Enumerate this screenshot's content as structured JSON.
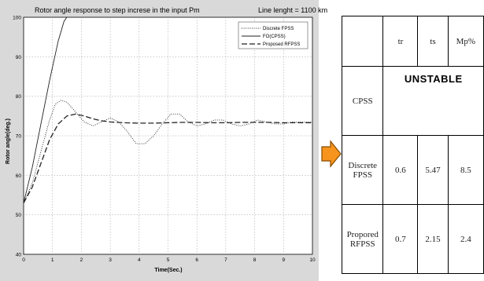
{
  "chart_data": {
    "type": "line",
    "title": "Rotor angle response to step increse in the input Pm",
    "annotation": "Line lenght = 1100 km",
    "xlabel": "Time(Sec.)",
    "ylabel": "Rotor angle(deg.)",
    "xlim": [
      0,
      10
    ],
    "ylim": [
      40,
      100
    ],
    "xticks": [
      "0",
      "1",
      "2",
      "3",
      "4",
      "5",
      "6",
      "7",
      "8",
      "9",
      "10"
    ],
    "yticks": [
      "40",
      "50",
      "60",
      "70",
      "80",
      "90",
      "100"
    ],
    "grid": true,
    "legend_position": "top-right",
    "series": [
      {
        "name": "Discrete FPSS",
        "style": "dotted",
        "x": [
          0,
          0.3,
          0.6,
          0.9,
          1.1,
          1.3,
          1.5,
          1.8,
          2.1,
          2.4,
          2.7,
          3.0,
          3.3,
          3.6,
          3.9,
          4.2,
          4.5,
          4.8,
          5.1,
          5.4,
          5.7,
          6.0,
          6.3,
          6.6,
          6.9,
          7.2,
          7.5,
          7.8,
          8.1,
          8.4,
          8.7,
          9.0,
          9.3,
          9.6,
          10.0
        ],
        "y": [
          53,
          58,
          66,
          74,
          78,
          79,
          78.5,
          76,
          73.5,
          72.5,
          73.5,
          74.5,
          73.5,
          71,
          68,
          68,
          70,
          73,
          75.5,
          75.5,
          73.5,
          72.5,
          73,
          74,
          74,
          73,
          72.5,
          73,
          74,
          73.5,
          73,
          73,
          73.5,
          73.5,
          73.5
        ]
      },
      {
        "name": "FO(CPSS)",
        "style": "solid",
        "x": [
          0,
          0.3,
          0.6,
          0.9,
          1.2,
          1.4,
          1.5
        ],
        "y": [
          53,
          62,
          73,
          84,
          94,
          99,
          100
        ]
      },
      {
        "name": "Proposed RFPSS",
        "style": "dashed",
        "x": [
          0,
          0.3,
          0.6,
          0.9,
          1.2,
          1.5,
          1.8,
          2.1,
          2.4,
          2.7,
          3.0,
          3.5,
          4.0,
          4.5,
          5.0,
          5.5,
          6.0,
          6.5,
          7.0,
          7.5,
          8.0,
          8.5,
          9.0,
          9.5,
          10.0
        ],
        "y": [
          53,
          57,
          63,
          69,
          73,
          75,
          75.5,
          75,
          74.3,
          73.8,
          73.5,
          73.3,
          73.2,
          73.2,
          73.3,
          73.4,
          73.4,
          73.3,
          73.3,
          73.4,
          73.4,
          73.4,
          73.3,
          73.3,
          73.3
        ]
      }
    ]
  },
  "table": {
    "headers": [
      "",
      "tr",
      "ts",
      "Mp%"
    ],
    "rows": [
      {
        "label": "CPSS",
        "merged": "UNSTABLE"
      },
      {
        "label_lines": [
          "Discrete",
          "FPSS"
        ],
        "values": [
          "0.6",
          "5.47",
          "8.5"
        ]
      },
      {
        "label_lines": [
          "Propored",
          "RFPSS"
        ],
        "values": [
          "0.7",
          "2.15",
          "2.4"
        ]
      }
    ]
  },
  "colors": {
    "plot_bg": "#d9d9d9",
    "axes_bg": "#ffffff",
    "grid": "#999999",
    "arrow_fill": "#f7941d",
    "arrow_stroke": "#8a4b00"
  },
  "icons": {
    "arrow": "right-arrow-icon"
  }
}
